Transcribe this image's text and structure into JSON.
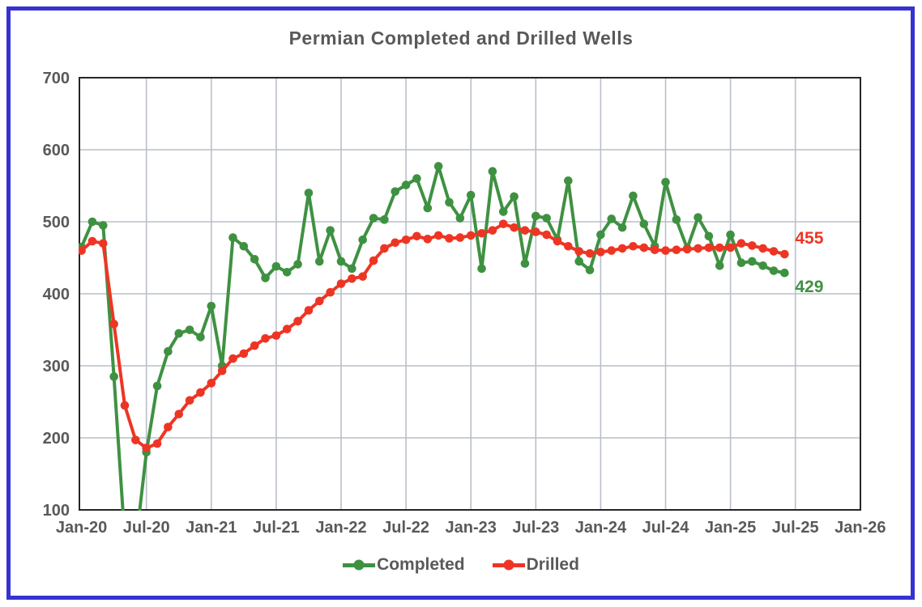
{
  "title": "Permian Completed and Drilled Wells",
  "colors": {
    "completed": "#3f9142",
    "drilled": "#ee3524",
    "text": "#595959",
    "grid": "#b9bfc9",
    "plot_border": "#262626",
    "frame_border": "#3632d2",
    "background": "#ffffff"
  },
  "legend": {
    "items": [
      {
        "label": "Completed",
        "color_key": "completed"
      },
      {
        "label": "Drilled",
        "color_key": "drilled"
      }
    ]
  },
  "chart_data": {
    "type": "line",
    "title": "Permian Completed and Drilled Wells",
    "grid": true,
    "legend_position": "bottom",
    "ylim": [
      100,
      700
    ],
    "y_ticks": [
      700,
      600,
      500,
      400,
      300,
      200,
      100
    ],
    "x_tick_labels": [
      "Jan-20",
      "Jul-20",
      "Jan-21",
      "Jul-21",
      "Jan-22",
      "Jul-22",
      "Jan-23",
      "Jul-23",
      "Jan-24",
      "Jul-24",
      "Jan-25",
      "Jul-25",
      "Jan-26"
    ],
    "x": [
      "Jan-20",
      "Feb-20",
      "Mar-20",
      "Apr-20",
      "May-20",
      "Jun-20",
      "Jul-20",
      "Aug-20",
      "Sep-20",
      "Oct-20",
      "Nov-20",
      "Dec-20",
      "Jan-21",
      "Feb-21",
      "Mar-21",
      "Apr-21",
      "May-21",
      "Jun-21",
      "Jul-21",
      "Aug-21",
      "Sep-21",
      "Oct-21",
      "Nov-21",
      "Dec-21",
      "Jan-22",
      "Feb-22",
      "Mar-22",
      "Apr-22",
      "May-22",
      "Jun-22",
      "Jul-22",
      "Aug-22",
      "Sep-22",
      "Oct-22",
      "Nov-22",
      "Dec-22",
      "Jan-23",
      "Feb-23",
      "Mar-23",
      "Apr-23",
      "May-23",
      "Jun-23",
      "Jul-23",
      "Aug-23",
      "Sep-23",
      "Oct-23",
      "Nov-23",
      "Dec-23",
      "Jan-24",
      "Feb-24",
      "Mar-24",
      "Apr-24",
      "May-24",
      "Jun-24",
      "Jul-24",
      "Aug-24",
      "Sep-24",
      "Oct-24",
      "Nov-24",
      "Dec-24",
      "Jan-25",
      "Feb-25",
      "Mar-25",
      "Apr-25",
      "May-25",
      "Jun-25"
    ],
    "series": [
      {
        "name": "Completed",
        "color_key": "completed",
        "values": [
          465,
          500,
          495,
          285,
          60,
          50,
          180,
          272,
          320,
          345,
          350,
          340,
          383,
          300,
          478,
          466,
          448,
          422,
          438,
          430,
          441,
          540,
          445,
          488,
          445,
          435,
          475,
          505,
          503,
          542,
          551,
          560,
          519,
          577,
          527,
          505,
          537,
          435,
          570,
          514,
          535,
          442,
          508,
          505,
          475,
          557,
          445,
          433,
          482,
          504,
          492,
          536,
          497,
          466,
          555,
          503,
          463,
          506,
          480,
          439,
          482,
          443,
          445,
          439,
          432,
          429
        ]
      },
      {
        "name": "Drilled",
        "color_key": "drilled",
        "values": [
          460,
          473,
          470,
          358,
          245,
          197,
          186,
          192,
          215,
          233,
          252,
          263,
          276,
          293,
          310,
          317,
          328,
          338,
          342,
          351,
          362,
          377,
          390,
          402,
          414,
          421,
          424,
          446,
          463,
          471,
          475,
          480,
          476,
          481,
          477,
          478,
          481,
          484,
          488,
          497,
          492,
          488,
          486,
          482,
          473,
          466,
          459,
          456,
          458,
          460,
          463,
          466,
          464,
          461,
          460,
          461,
          462,
          463,
          464,
          464,
          464,
          470,
          467,
          463,
          459,
          455
        ]
      }
    ],
    "end_labels": [
      {
        "series": "Drilled",
        "text": "455"
      },
      {
        "series": "Completed",
        "text": "429"
      }
    ]
  }
}
